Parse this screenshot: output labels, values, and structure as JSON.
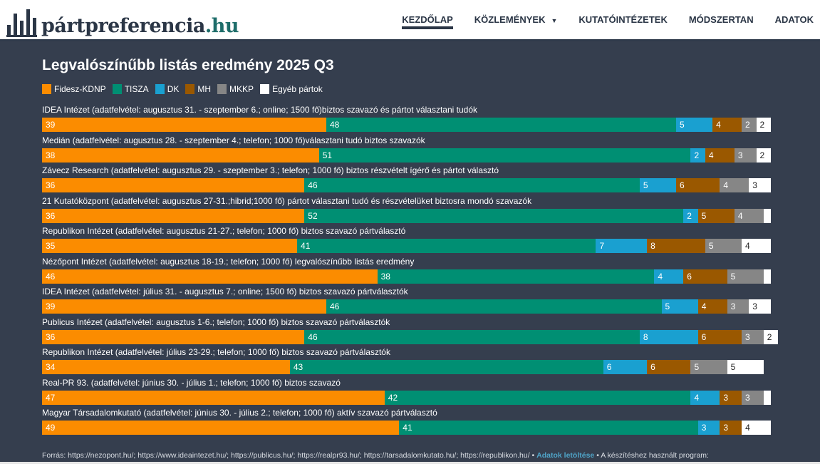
{
  "site": {
    "logo_main": "pártpreferencia",
    "logo_tld": ".hu"
  },
  "nav": [
    {
      "label": "KEZDŐLAP",
      "active": true
    },
    {
      "label": "KÖZLEMÉNYEK",
      "dropdown": true
    },
    {
      "label": "KUTATÓINTÉZETEK"
    },
    {
      "label": "MÓDSZERTAN"
    },
    {
      "label": "ADATOK"
    }
  ],
  "chart_data": {
    "type": "bar",
    "stacked": true,
    "orientation": "horizontal",
    "title": "Legvalószínűbb listás eredmény 2025 Q3",
    "legend": [
      {
        "name": "Fidesz-KDNP",
        "color": "#fb8c00"
      },
      {
        "name": "TISZA",
        "color": "#008f73"
      },
      {
        "name": "DK",
        "color": "#1aa0d0"
      },
      {
        "name": "MH",
        "color": "#9a5800"
      },
      {
        "name": "MKKP",
        "color": "#868686"
      },
      {
        "name": "Egyéb pártok",
        "color": "#ffffff"
      }
    ],
    "rows": [
      {
        "label": "IDEA Intézet (adatfelvétel: augusztus 31. - szeptember 6.; online; 1500 fő)biztos szavazó és pártot választani tudók",
        "values": [
          39,
          48,
          5,
          4,
          2,
          2
        ]
      },
      {
        "label": "Medián (adatfelvétel: augusztus 28. - szeptember 4.; telefon; 1000 fő)választani tudó biztos szavazók",
        "values": [
          38,
          51,
          2,
          4,
          3,
          2
        ]
      },
      {
        "label": "Závecz Research (adatfelvétel: augusztus 29. - szeptember 3.; telefon; 1000 fő) biztos részvételt ígérő és pártot választó",
        "values": [
          36,
          46,
          5,
          6,
          4,
          3
        ]
      },
      {
        "label": "21 Kutatóközpont (adatfelvétel: augusztus 27-31.;hibrid;1000 fő) pártot választani tudó és részvételüket biztosra mondó szavazók",
        "values": [
          36,
          52,
          2,
          5,
          4,
          1
        ]
      },
      {
        "label": "Republikon Intézet (adatfelvétel: augusztus 21-27.; telefon; 1000 fő) biztos szavazó pártválasztó",
        "values": [
          35,
          41,
          7,
          8,
          5,
          4
        ]
      },
      {
        "label": "Nézőpont Intézet (adatfelvétel: augusztus 18-19.; telefon; 1000 fő) legvalószínűbb listás eredmény",
        "values": [
          46,
          38,
          4,
          6,
          5,
          1
        ]
      },
      {
        "label": "IDEA Intézet (adatfelvétel: július 31. - augusztus 7.; online; 1500 fő) biztos szavazó pártválasztók",
        "values": [
          39,
          46,
          5,
          4,
          3,
          3
        ]
      },
      {
        "label": "Publicus Intézet (adatfelvétel: augusztus 1-6.; telefon; 1000 fő) biztos szavazó pártválasztók",
        "values": [
          36,
          46,
          8,
          6,
          3,
          2
        ]
      },
      {
        "label": "Republikon Intézet (adatfelvétel: július 23-29.; telefon; 1000 fő) biztos szavazó pártválasztók",
        "values": [
          34,
          43,
          6,
          6,
          5,
          5
        ]
      },
      {
        "label": "Real-PR 93. (adatfelvétel: június 30. - július 1.; telefon; 1000 fő) biztos szavazó",
        "values": [
          47,
          42,
          4,
          3,
          3,
          1
        ]
      },
      {
        "label": "Magyar Társadalomkutató (adatfelvétel: június 30. - július 2.; telefon; 1000 fő) aktív szavazó pártválasztó",
        "values": [
          49,
          41,
          3,
          3,
          0,
          4
        ]
      }
    ],
    "xlim": [
      0,
      100
    ]
  },
  "footer": {
    "sources": "Forrás: https://nezopont.hu/; https://www.ideaintezet.hu/; https://publicus.hu/; https://realpr93.hu/; https://tarsadalomkutato.hu/; https://republikon.hu/ •",
    "download_link": "Adatok letöltése",
    "program_text": "• A készítéshez használt program:"
  }
}
